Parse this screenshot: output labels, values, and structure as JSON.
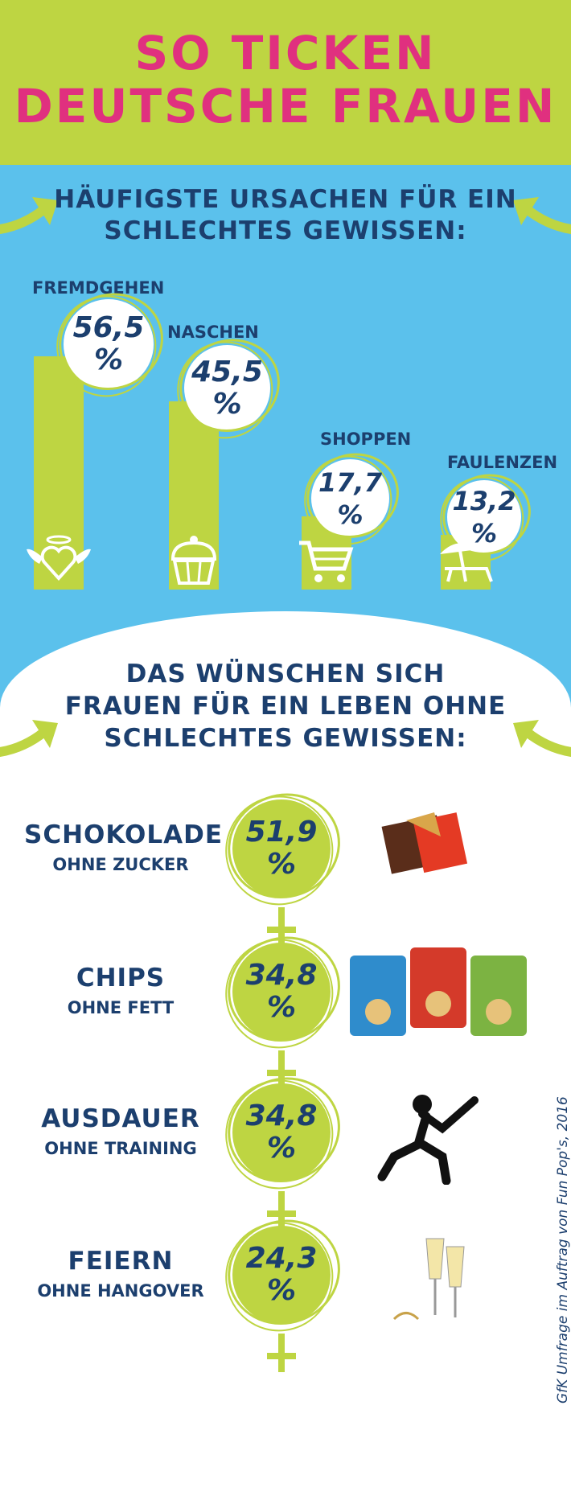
{
  "header": {
    "line1": "SO TICKEN",
    "line2": "DEUTSCHE FRAUEN"
  },
  "section1": {
    "line1": "HÄUFIGSTE URSACHEN FÜR EIN",
    "line2": "SCHLECHTES GEWISSEN:"
  },
  "section2": {
    "line1": "DAS WÜNSCHEN SICH",
    "line2": "FRAUEN FÜR EIN LEBEN OHNE",
    "line3": "SCHLECHTES GEWISSEN:"
  },
  "credit": "GfK Umfrage im Auftrag von Fun Pop's, 2016",
  "colors": {
    "lime": "#bed542",
    "blue": "#5bc1ec",
    "navy": "#1c3f6e",
    "pink": "#e0307f"
  },
  "chart_data": [
    {
      "type": "bar",
      "categories": [
        "FREMDGEHEN",
        "NASCHEN",
        "SHOPPEN",
        "FAULENZEN"
      ],
      "values": [
        56.5,
        45.5,
        17.7,
        13.2
      ],
      "value_labels": [
        "56,5",
        "45,5",
        "17,7",
        "13,2"
      ],
      "unit": "%",
      "icons": [
        "angel-heart-icon",
        "cupcake-icon",
        "shopping-cart-icon",
        "beach-chair-icon"
      ]
    },
    {
      "type": "table",
      "rows": [
        {
          "line1": "SCHOKOLADE",
          "line2": "OHNE ZUCKER",
          "value": 51.9,
          "label": "51,9",
          "image": "chocolate-image"
        },
        {
          "line1": "CHIPS",
          "line2": "OHNE FETT",
          "value": 34.8,
          "label": "34,8",
          "image": "chips-bags-image"
        },
        {
          "line1": "AUSDAUER",
          "line2": "OHNE TRAINING",
          "value": 34.8,
          "label": "34,8",
          "image": "athlete-image"
        },
        {
          "line1": "FEIERN",
          "line2": "OHNE HANGOVER",
          "value": 24.3,
          "label": "24,3",
          "image": "champagne-image"
        }
      ],
      "unit": "%"
    }
  ]
}
